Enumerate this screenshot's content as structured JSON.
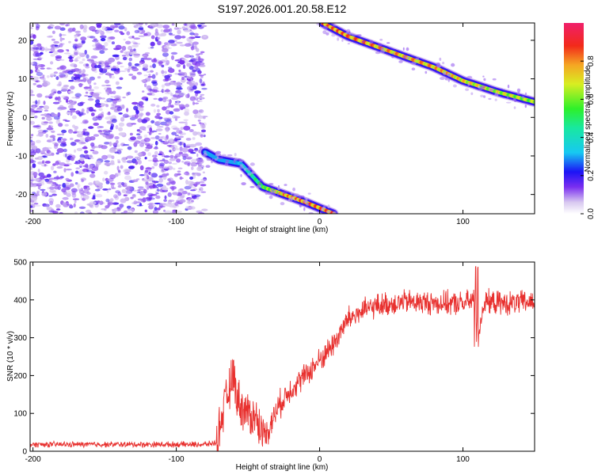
{
  "title": "S197.2026.001.20.58.E12",
  "chart_data": [
    {
      "type": "heatmap",
      "xlabel": "Height of straight line (km)",
      "ylabel": "Frequency (Hz)",
      "xlim": [
        -202,
        150
      ],
      "ylim": [
        -25,
        24.5
      ],
      "xticks": [
        -200,
        -100,
        0,
        100
      ],
      "xtick_labels": [
        "-200",
        "-100",
        "0",
        "100"
      ],
      "yticks": [
        -20,
        -10,
        0,
        10,
        20
      ],
      "ytick_labels": [
        "-20",
        "-10",
        "0",
        "10",
        "20"
      ],
      "colorbar": {
        "label": "Normalized spectral amplitude",
        "ticks": [
          0.0,
          0.2,
          0.4,
          0.6,
          0.8
        ],
        "tick_labels": [
          "0.0",
          "0.2",
          "0.4",
          "0.6",
          "0.8"
        ],
        "range": [
          0,
          1
        ]
      },
      "noise_region_km": [
        -202,
        -80
      ],
      "ridges": [
        {
          "name": "upper ridge",
          "points": [
            [
              2,
              24.5
            ],
            [
              20,
              21
            ],
            [
              50,
              17
            ],
            [
              80,
              13
            ],
            [
              100,
              9.5
            ],
            [
              125,
              6.5
            ],
            [
              150,
              4
            ]
          ],
          "amplitude": [
            0.9,
            0.9,
            0.85,
            0.85,
            0.8,
            0.75,
            0.7
          ]
        },
        {
          "name": "lower ridge",
          "points": [
            [
              -80,
              -9
            ],
            [
              -70,
              -11
            ],
            [
              -55,
              -12
            ],
            [
              -40,
              -18
            ],
            [
              -25,
              -20
            ],
            [
              -10,
              -22
            ],
            [
              10,
              -25
            ]
          ],
          "amplitude": [
            0.3,
            0.25,
            0.35,
            0.6,
            0.85,
            0.9,
            0.9
          ]
        }
      ]
    },
    {
      "type": "line",
      "xlabel": "Height of straight line (km)",
      "ylabel": "SNR (10 * v/v)",
      "xlim": [
        -202,
        150
      ],
      "ylim": [
        0,
        500
      ],
      "xticks": [
        -200,
        -100,
        0,
        100
      ],
      "xtick_labels": [
        "-200",
        "-100",
        "0",
        "100"
      ],
      "yticks": [
        0,
        100,
        200,
        300,
        400,
        500
      ],
      "ytick_labels": [
        "0",
        "100",
        "200",
        "300",
        "400",
        "500"
      ],
      "color": "#e8312f",
      "series": [
        {
          "name": "SNR",
          "x": [
            -202,
            -180,
            -160,
            -140,
            -120,
            -100,
            -80,
            -72,
            -68,
            -64,
            -60,
            -58,
            -55,
            -50,
            -45,
            -40,
            -35,
            -30,
            -25,
            -20,
            -10,
            0,
            10,
            20,
            30,
            40,
            60,
            80,
            100,
            108,
            110,
            115,
            130,
            150
          ],
          "y": [
            18,
            18,
            18,
            18,
            18,
            18,
            18,
            22,
            95,
            150,
            205,
            150,
            120,
            100,
            90,
            50,
            60,
            110,
            140,
            165,
            200,
            240,
            285,
            350,
            370,
            385,
            395,
            392,
            390,
            400,
            300,
            395,
            390,
            395
          ]
        }
      ]
    }
  ]
}
